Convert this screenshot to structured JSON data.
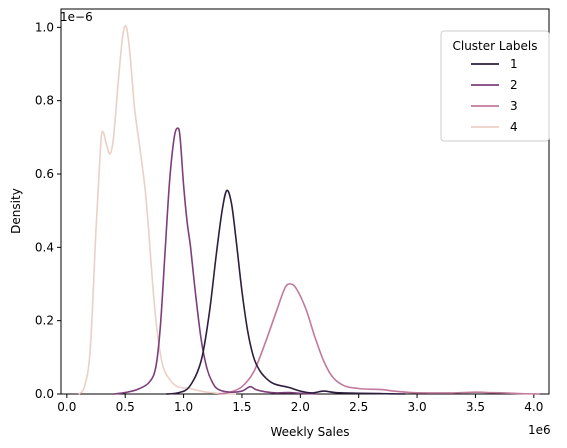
{
  "chart_data": {
    "type": "line",
    "title": "",
    "xlabel": "Weekly Sales",
    "ylabel": "Density",
    "x_offset_label": "1e6",
    "y_offset_label": "1e−6",
    "xlim": [
      -0.05,
      4.13
    ],
    "ylim": [
      0,
      1.05
    ],
    "x_ticks": [
      0.0,
      0.5,
      1.0,
      1.5,
      2.0,
      2.5,
      3.0,
      3.5,
      4.0
    ],
    "x_tick_labels": [
      "0.0",
      "0.5",
      "1.0",
      "1.5",
      "2.0",
      "2.5",
      "3.0",
      "3.5",
      "4.0"
    ],
    "y_ticks": [
      0.0,
      0.2,
      0.4,
      0.6,
      0.8,
      1.0
    ],
    "y_tick_labels": [
      "0.0",
      "0.2",
      "0.4",
      "0.6",
      "0.8",
      "1.0"
    ],
    "grid": false,
    "legend": {
      "title": "Cluster Labels",
      "placement": "top-right"
    },
    "series": [
      {
        "name": "1",
        "color": "#2d1e3e",
        "points": [
          [
            0.85,
            0
          ],
          [
            0.95,
            0.003
          ],
          [
            1.05,
            0.02
          ],
          [
            1.15,
            0.09
          ],
          [
            1.22,
            0.22
          ],
          [
            1.28,
            0.38
          ],
          [
            1.33,
            0.5
          ],
          [
            1.37,
            0.555
          ],
          [
            1.41,
            0.52
          ],
          [
            1.45,
            0.42
          ],
          [
            1.5,
            0.28
          ],
          [
            1.55,
            0.17
          ],
          [
            1.6,
            0.1
          ],
          [
            1.65,
            0.065
          ],
          [
            1.7,
            0.045
          ],
          [
            1.75,
            0.032
          ],
          [
            1.8,
            0.025
          ],
          [
            1.9,
            0.018
          ],
          [
            2.0,
            0.008
          ],
          [
            2.1,
            0.003
          ],
          [
            2.2,
            0.008
          ],
          [
            2.3,
            0.004
          ],
          [
            2.5,
            0.002
          ],
          [
            2.7,
            0.001
          ],
          [
            2.9,
            0
          ]
        ]
      },
      {
        "name": "2",
        "color": "#7c3f7a",
        "points": [
          [
            0.4,
            0
          ],
          [
            0.5,
            0.004
          ],
          [
            0.6,
            0.012
          ],
          [
            0.7,
            0.03
          ],
          [
            0.76,
            0.07
          ],
          [
            0.8,
            0.18
          ],
          [
            0.84,
            0.38
          ],
          [
            0.88,
            0.58
          ],
          [
            0.92,
            0.7
          ],
          [
            0.95,
            0.725
          ],
          [
            0.97,
            0.7
          ],
          [
            1.0,
            0.57
          ],
          [
            1.03,
            0.47
          ],
          [
            1.06,
            0.4
          ],
          [
            1.1,
            0.28
          ],
          [
            1.15,
            0.15
          ],
          [
            1.2,
            0.07
          ],
          [
            1.25,
            0.03
          ],
          [
            1.3,
            0.012
          ],
          [
            1.4,
            0.005
          ],
          [
            1.5,
            0.008
          ],
          [
            1.57,
            0.02
          ],
          [
            1.62,
            0.012
          ],
          [
            1.7,
            0.006
          ],
          [
            1.8,
            0.003
          ],
          [
            1.9,
            0.004
          ],
          [
            2.0,
            0.002
          ],
          [
            2.15,
            0
          ]
        ]
      },
      {
        "name": "3",
        "color": "#c3799d",
        "points": [
          [
            1.3,
            0
          ],
          [
            1.4,
            0.005
          ],
          [
            1.5,
            0.02
          ],
          [
            1.6,
            0.06
          ],
          [
            1.7,
            0.14
          ],
          [
            1.8,
            0.23
          ],
          [
            1.87,
            0.29
          ],
          [
            1.92,
            0.3
          ],
          [
            1.97,
            0.285
          ],
          [
            2.05,
            0.23
          ],
          [
            2.12,
            0.16
          ],
          [
            2.2,
            0.09
          ],
          [
            2.28,
            0.045
          ],
          [
            2.38,
            0.022
          ],
          [
            2.5,
            0.015
          ],
          [
            2.6,
            0.013
          ],
          [
            2.7,
            0.012
          ],
          [
            2.8,
            0.008
          ],
          [
            2.95,
            0.004
          ],
          [
            3.1,
            0.003
          ],
          [
            3.3,
            0.003
          ],
          [
            3.5,
            0.005
          ],
          [
            3.6,
            0.004
          ],
          [
            3.75,
            0.003
          ],
          [
            3.9,
            0.001
          ],
          [
            4.05,
            0
          ]
        ]
      },
      {
        "name": "4",
        "color": "#ebd0c7",
        "points": [
          [
            0.1,
            0
          ],
          [
            0.15,
            0.02
          ],
          [
            0.2,
            0.12
          ],
          [
            0.25,
            0.45
          ],
          [
            0.29,
            0.68
          ],
          [
            0.31,
            0.715
          ],
          [
            0.34,
            0.68
          ],
          [
            0.37,
            0.655
          ],
          [
            0.4,
            0.7
          ],
          [
            0.44,
            0.85
          ],
          [
            0.48,
            0.98
          ],
          [
            0.51,
            1.0
          ],
          [
            0.54,
            0.93
          ],
          [
            0.58,
            0.78
          ],
          [
            0.63,
            0.66
          ],
          [
            0.67,
            0.56
          ],
          [
            0.7,
            0.45
          ],
          [
            0.73,
            0.32
          ],
          [
            0.77,
            0.18
          ],
          [
            0.82,
            0.08
          ],
          [
            0.88,
            0.04
          ],
          [
            0.95,
            0.02
          ],
          [
            1.05,
            0.015
          ],
          [
            1.12,
            0.01
          ],
          [
            1.2,
            0.005
          ],
          [
            1.3,
            0.002
          ],
          [
            1.45,
            0
          ]
        ]
      }
    ]
  }
}
